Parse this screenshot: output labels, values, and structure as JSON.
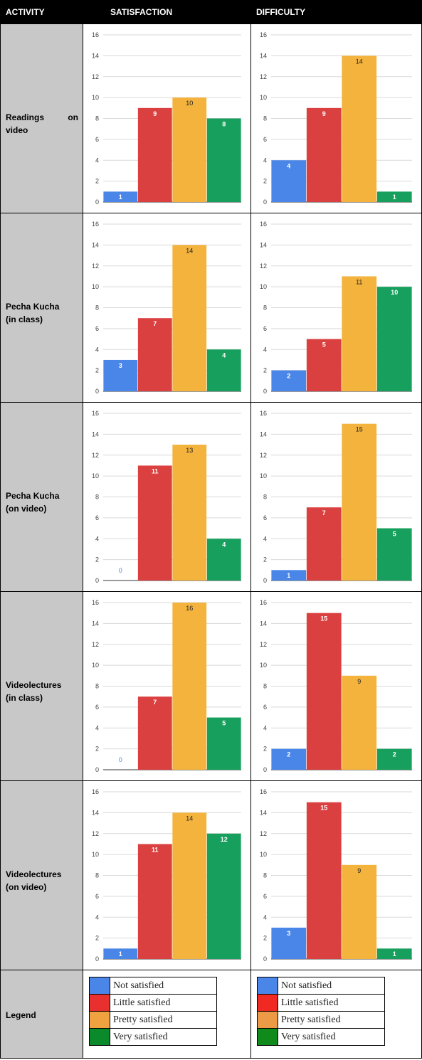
{
  "headers": {
    "activity": "ACTIVITY",
    "satisfaction": "SATISFACTION",
    "difficulty": "DIFFICULTY"
  },
  "rows": [
    {
      "label_lines": [
        "Readings on",
        "video"
      ],
      "justify_first": true
    },
    {
      "label_lines": [
        "Pecha Kucha",
        "(in class)"
      ]
    },
    {
      "label_lines": [
        "Pecha Kucha",
        "(on video)"
      ]
    },
    {
      "label_lines": [
        "Videolectures",
        "(in class)"
      ]
    },
    {
      "label_lines": [
        "Videolectures",
        "(on video)"
      ]
    }
  ],
  "legend": {
    "label": "Legend",
    "satisfaction_items": [
      {
        "label": "Not satisfied",
        "color": "#4a86e8"
      },
      {
        "label": "Little satisfied",
        "color": "#e8302f"
      },
      {
        "label": "Pretty satisfied",
        "color": "#f0a140"
      },
      {
        "label": "Very satisfied",
        "color": "#0a8a2a"
      }
    ],
    "difficulty_items": [
      {
        "label": "Not satisfied",
        "color": "#4a86e8"
      },
      {
        "label": "Little satisfied",
        "color": "#f02a22"
      },
      {
        "label": "Pretty satisfied",
        "color": "#ec9a45"
      },
      {
        "label": "Very satisfied",
        "color": "#108a1a"
      }
    ]
  },
  "chart_data": [
    {
      "type": "bar",
      "row": "Readings on video",
      "column": "SATISFACTION",
      "values": [
        1,
        9,
        10,
        8
      ],
      "colors": [
        "#4a86e8",
        "#db4040",
        "#f3b33d",
        "#17a05d"
      ],
      "ylim": [
        0,
        16
      ],
      "yticks": [
        0,
        2,
        4,
        6,
        8,
        10,
        12,
        14,
        16
      ]
    },
    {
      "type": "bar",
      "row": "Readings on video",
      "column": "DIFFICULTY",
      "values": [
        4,
        9,
        14,
        1
      ],
      "colors": [
        "#4a86e8",
        "#db4040",
        "#f3b33d",
        "#17a05d"
      ],
      "ylim": [
        0,
        16
      ],
      "yticks": [
        0,
        2,
        4,
        6,
        8,
        10,
        12,
        14,
        16
      ]
    },
    {
      "type": "bar",
      "row": "Pecha Kucha (in class)",
      "column": "SATISFACTION",
      "values": [
        3,
        7,
        14,
        4
      ],
      "colors": [
        "#4a86e8",
        "#db4040",
        "#f3b33d",
        "#17a05d"
      ],
      "ylim": [
        0,
        16
      ],
      "yticks": [
        0,
        2,
        4,
        6,
        8,
        10,
        12,
        14,
        16
      ]
    },
    {
      "type": "bar",
      "row": "Pecha Kucha (in class)",
      "column": "DIFFICULTY",
      "values": [
        2,
        5,
        11,
        10
      ],
      "colors": [
        "#4a86e8",
        "#db4040",
        "#f3b33d",
        "#17a05d"
      ],
      "ylim": [
        0,
        16
      ],
      "yticks": [
        0,
        2,
        4,
        6,
        8,
        10,
        12,
        14,
        16
      ]
    },
    {
      "type": "bar",
      "row": "Pecha Kucha (on video)",
      "column": "SATISFACTION",
      "values": [
        0,
        11,
        13,
        4
      ],
      "colors": [
        "#4a86e8",
        "#db4040",
        "#f3b33d",
        "#17a05d"
      ],
      "ylim": [
        0,
        16
      ],
      "yticks": [
        0,
        2,
        4,
        6,
        8,
        10,
        12,
        14,
        16
      ]
    },
    {
      "type": "bar",
      "row": "Pecha Kucha (on video)",
      "column": "DIFFICULTY",
      "values": [
        1,
        7,
        15,
        5
      ],
      "colors": [
        "#4a86e8",
        "#db4040",
        "#f3b33d",
        "#17a05d"
      ],
      "ylim": [
        0,
        16
      ],
      "yticks": [
        0,
        2,
        4,
        6,
        8,
        10,
        12,
        14,
        16
      ]
    },
    {
      "type": "bar",
      "row": "Videolectures (in class)",
      "column": "SATISFACTION",
      "values": [
        0,
        7,
        16,
        5
      ],
      "colors": [
        "#4a86e8",
        "#db4040",
        "#f3b33d",
        "#17a05d"
      ],
      "ylim": [
        0,
        16
      ],
      "yticks": [
        0,
        2,
        4,
        6,
        8,
        10,
        12,
        14,
        16
      ]
    },
    {
      "type": "bar",
      "row": "Videolectures (in class)",
      "column": "DIFFICULTY",
      "values": [
        2,
        15,
        9,
        2
      ],
      "colors": [
        "#4a86e8",
        "#db4040",
        "#f3b33d",
        "#17a05d"
      ],
      "ylim": [
        0,
        16
      ],
      "yticks": [
        0,
        2,
        4,
        6,
        8,
        10,
        12,
        14,
        16
      ]
    },
    {
      "type": "bar",
      "row": "Videolectures (on video)",
      "column": "SATISFACTION",
      "values": [
        1,
        11,
        14,
        12
      ],
      "colors": [
        "#4a86e8",
        "#db4040",
        "#f3b33d",
        "#17a05d"
      ],
      "ylim": [
        0,
        16
      ],
      "yticks": [
        0,
        2,
        4,
        6,
        8,
        10,
        12,
        14,
        16
      ]
    },
    {
      "type": "bar",
      "row": "Videolectures (on video)",
      "column": "DIFFICULTY",
      "values": [
        3,
        15,
        9,
        1
      ],
      "colors": [
        "#4a86e8",
        "#db4040",
        "#f3b33d",
        "#17a05d"
      ],
      "ylim": [
        0,
        16
      ],
      "yticks": [
        0,
        2,
        4,
        6,
        8,
        10,
        12,
        14,
        16
      ]
    }
  ]
}
